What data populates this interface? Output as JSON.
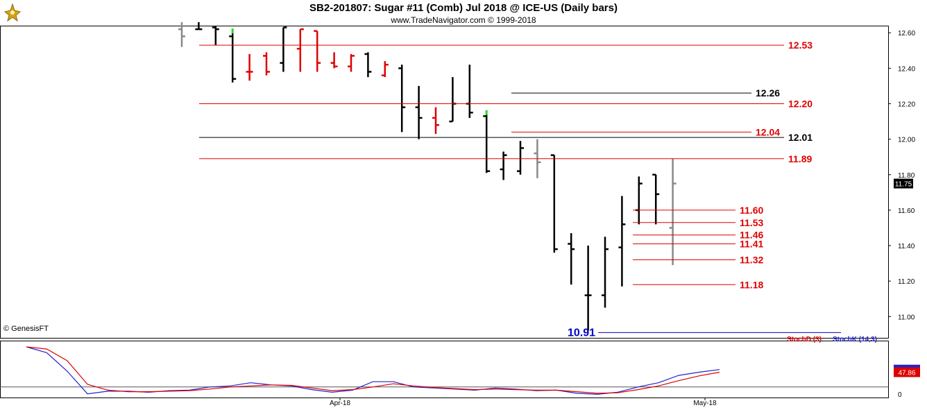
{
  "header": {
    "title": "SB2-201807:  Sugar #11 (Comb) Jul 2018 @ ICE-US  (Daily bars)",
    "subtitle": "www.TradeNavigator.com © 1999-2018",
    "credit": "© GenesisFT"
  },
  "colors": {
    "bar_default": "#000000",
    "bar_red": "#e00000",
    "bar_gray": "#888888",
    "bar_green_tip": "#22dd22",
    "line_red": "#e00000",
    "line_black": "#000000",
    "line_blue": "#0000cc",
    "stoch_d": "#dd0000",
    "stoch_k": "#2222cc"
  },
  "chart_data": [
    {
      "type": "ohlc",
      "panel": "price",
      "ylim": [
        10.88,
        12.64
      ],
      "y_ticks": [
        "12.60",
        "12.40",
        "12.20",
        "12.00",
        "11.80",
        "11.60",
        "11.40",
        "11.20",
        "11.00"
      ],
      "last_price_label": "11.75",
      "bars": [
        {
          "o": 12.62,
          "h": 12.66,
          "l": 12.52,
          "c": 12.58,
          "color": "gray"
        },
        {
          "o": 12.62,
          "h": 12.66,
          "l": 12.62,
          "c": 12.62,
          "color": "black"
        },
        {
          "o": 12.63,
          "h": 12.64,
          "l": 12.53,
          "c": 12.62,
          "color": "black"
        },
        {
          "o": 12.58,
          "h": 12.62,
          "l": 12.32,
          "c": 12.34,
          "color": "black",
          "tip": "green"
        },
        {
          "o": 12.38,
          "h": 12.48,
          "l": 12.33,
          "c": 12.38,
          "color": "red"
        },
        {
          "o": 12.47,
          "h": 12.49,
          "l": 12.36,
          "c": 12.38,
          "color": "red"
        },
        {
          "o": 12.43,
          "h": 12.63,
          "l": 12.38,
          "c": 12.63,
          "color": "black"
        },
        {
          "o": 12.51,
          "h": 12.62,
          "l": 12.38,
          "c": 12.62,
          "color": "red"
        },
        {
          "o": 12.61,
          "h": 12.61,
          "l": 12.38,
          "c": 12.43,
          "color": "red"
        },
        {
          "o": 12.43,
          "h": 12.49,
          "l": 12.4,
          "c": 12.41,
          "color": "red"
        },
        {
          "o": 12.41,
          "h": 12.48,
          "l": 12.38,
          "c": 12.47,
          "color": "red"
        },
        {
          "o": 12.48,
          "h": 12.49,
          "l": 12.35,
          "c": 12.38,
          "color": "black"
        },
        {
          "o": 12.36,
          "h": 12.44,
          "l": 12.35,
          "c": 12.42,
          "color": "red"
        },
        {
          "o": 12.4,
          "h": 12.42,
          "l": 12.04,
          "c": 12.18,
          "color": "black"
        },
        {
          "o": 12.18,
          "h": 12.3,
          "l": 12.0,
          "c": 12.12,
          "color": "black"
        },
        {
          "o": 12.12,
          "h": 12.18,
          "l": 12.03,
          "c": 12.08,
          "color": "red"
        },
        {
          "o": 12.1,
          "h": 12.35,
          "l": 12.1,
          "c": 12.2,
          "color": "black"
        },
        {
          "o": 12.2,
          "h": 12.42,
          "l": 12.12,
          "c": 12.15,
          "color": "black"
        },
        {
          "o": 12.13,
          "h": 12.16,
          "l": 11.81,
          "c": 11.82,
          "color": "black",
          "tip": "green"
        },
        {
          "o": 11.83,
          "h": 11.93,
          "l": 11.77,
          "c": 11.91,
          "color": "black"
        },
        {
          "o": 11.82,
          "h": 11.99,
          "l": 11.8,
          "c": 11.95,
          "color": "black"
        },
        {
          "o": 11.92,
          "h": 12.0,
          "l": 11.78,
          "c": 11.87,
          "color": "gray"
        },
        {
          "o": 11.91,
          "h": 11.91,
          "l": 11.36,
          "c": 11.38,
          "color": "black"
        },
        {
          "o": 11.41,
          "h": 11.47,
          "l": 11.18,
          "c": 11.38,
          "color": "black"
        },
        {
          "o": 11.12,
          "h": 11.4,
          "l": 10.92,
          "c": 11.12,
          "color": "black"
        },
        {
          "o": 11.12,
          "h": 11.45,
          "l": 11.05,
          "c": 11.38,
          "color": "black"
        },
        {
          "o": 11.39,
          "h": 11.68,
          "l": 11.17,
          "c": 11.52,
          "color": "black"
        },
        {
          "o": 11.6,
          "h": 11.79,
          "l": 11.52,
          "c": 11.75,
          "color": "black"
        },
        {
          "o": 11.8,
          "h": 11.8,
          "l": 11.52,
          "c": 11.69,
          "color": "black"
        },
        {
          "o": 11.5,
          "h": 11.89,
          "l": 11.29,
          "c": 11.75,
          "color": "gray"
        }
      ],
      "levels": [
        {
          "value": 12.53,
          "label": "12.53",
          "color": "red",
          "x_from": 0.0,
          "x_to": 1.0
        },
        {
          "value": 12.26,
          "label": "12.26",
          "color": "black",
          "x_from": 0.6,
          "x_to": 1.0
        },
        {
          "value": 12.2,
          "label": "12.20",
          "color": "red",
          "x_from": 0.0,
          "x_to": 1.0
        },
        {
          "value": 12.04,
          "label": "12.04",
          "color": "red",
          "x_from": 0.6,
          "x_to": 1.0
        },
        {
          "value": 12.01,
          "label": "12.01",
          "color": "black",
          "x_from": 0.0,
          "x_to": 1.0
        },
        {
          "value": 11.89,
          "label": "11.89",
          "color": "red",
          "x_from": 0.0,
          "x_to": 1.0
        },
        {
          "value": 11.6,
          "label": "11.60",
          "color": "red",
          "x_from": 0.8,
          "x_to": 1.0
        },
        {
          "value": 11.53,
          "label": "11.53",
          "color": "red",
          "x_from": 0.8,
          "x_to": 1.0
        },
        {
          "value": 11.46,
          "label": "11.46",
          "color": "red",
          "x_from": 0.8,
          "x_to": 1.0
        },
        {
          "value": 11.41,
          "label": "11.41",
          "color": "red",
          "x_from": 0.8,
          "x_to": 1.0
        },
        {
          "value": 11.32,
          "label": "11.32",
          "color": "red",
          "x_from": 0.8,
          "x_to": 1.0
        },
        {
          "value": 11.18,
          "label": "11.18",
          "color": "red",
          "x_from": 0.8,
          "x_to": 1.0
        },
        {
          "value": 10.91,
          "label": "10.91",
          "color": "blue",
          "x_from": 0.9,
          "x_to": 1.0
        }
      ]
    },
    {
      "type": "line",
      "panel": "stochastic",
      "ylim": [
        0,
        100
      ],
      "y_tick_zero": "0",
      "ref_line": 20,
      "x_ticks": [
        "Apr-18",
        "May-18"
      ],
      "legend": [
        {
          "name": "StochD (3)",
          "color": "stoch_d"
        },
        {
          "name": "StochK (14,3)",
          "color": "stoch_k"
        }
      ],
      "series": [
        {
          "name": "StochK (14,3)",
          "color": "stoch_k",
          "last_label": "52.90",
          "values": [
            96,
            85,
            50,
            7,
            12,
            12,
            10,
            13,
            14,
            20,
            22,
            28,
            24,
            22,
            15,
            10,
            14,
            30,
            30,
            20,
            18,
            16,
            14,
            18,
            16,
            13,
            14,
            8,
            6,
            10,
            20,
            28,
            42,
            48,
            53
          ]
        },
        {
          "name": "StochD (3)",
          "color": "stoch_d",
          "last_label": "47.86",
          "values": [
            96,
            92,
            70,
            25,
            14,
            11,
            11,
            12,
            13,
            16,
            20,
            22,
            24,
            23,
            18,
            13,
            15,
            20,
            26,
            22,
            19,
            17,
            15,
            16,
            15,
            14,
            14,
            11,
            8,
            9,
            15,
            22,
            32,
            41,
            48
          ]
        }
      ]
    }
  ]
}
